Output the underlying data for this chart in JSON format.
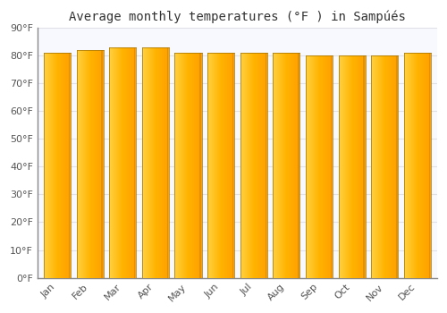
{
  "title": "Average monthly temperatures (°F ) in Sampúés",
  "months": [
    "Jan",
    "Feb",
    "Mar",
    "Apr",
    "May",
    "Jun",
    "Jul",
    "Aug",
    "Sep",
    "Oct",
    "Nov",
    "Dec"
  ],
  "values": [
    81,
    82,
    83,
    83,
    81,
    81,
    81,
    81,
    80,
    80,
    80,
    81
  ],
  "bar_color_left": "#FFD040",
  "bar_color_right": "#F0A000",
  "bar_edge_color": "#C8880A",
  "background_color": "#FFFFFF",
  "plot_bg_color": "#F8F8FF",
  "ylim": [
    0,
    90
  ],
  "ytick_step": 10,
  "grid_color": "#E0E0E8",
  "title_fontsize": 10,
  "tick_fontsize": 8,
  "tick_color": "#555555",
  "bar_width": 0.82
}
